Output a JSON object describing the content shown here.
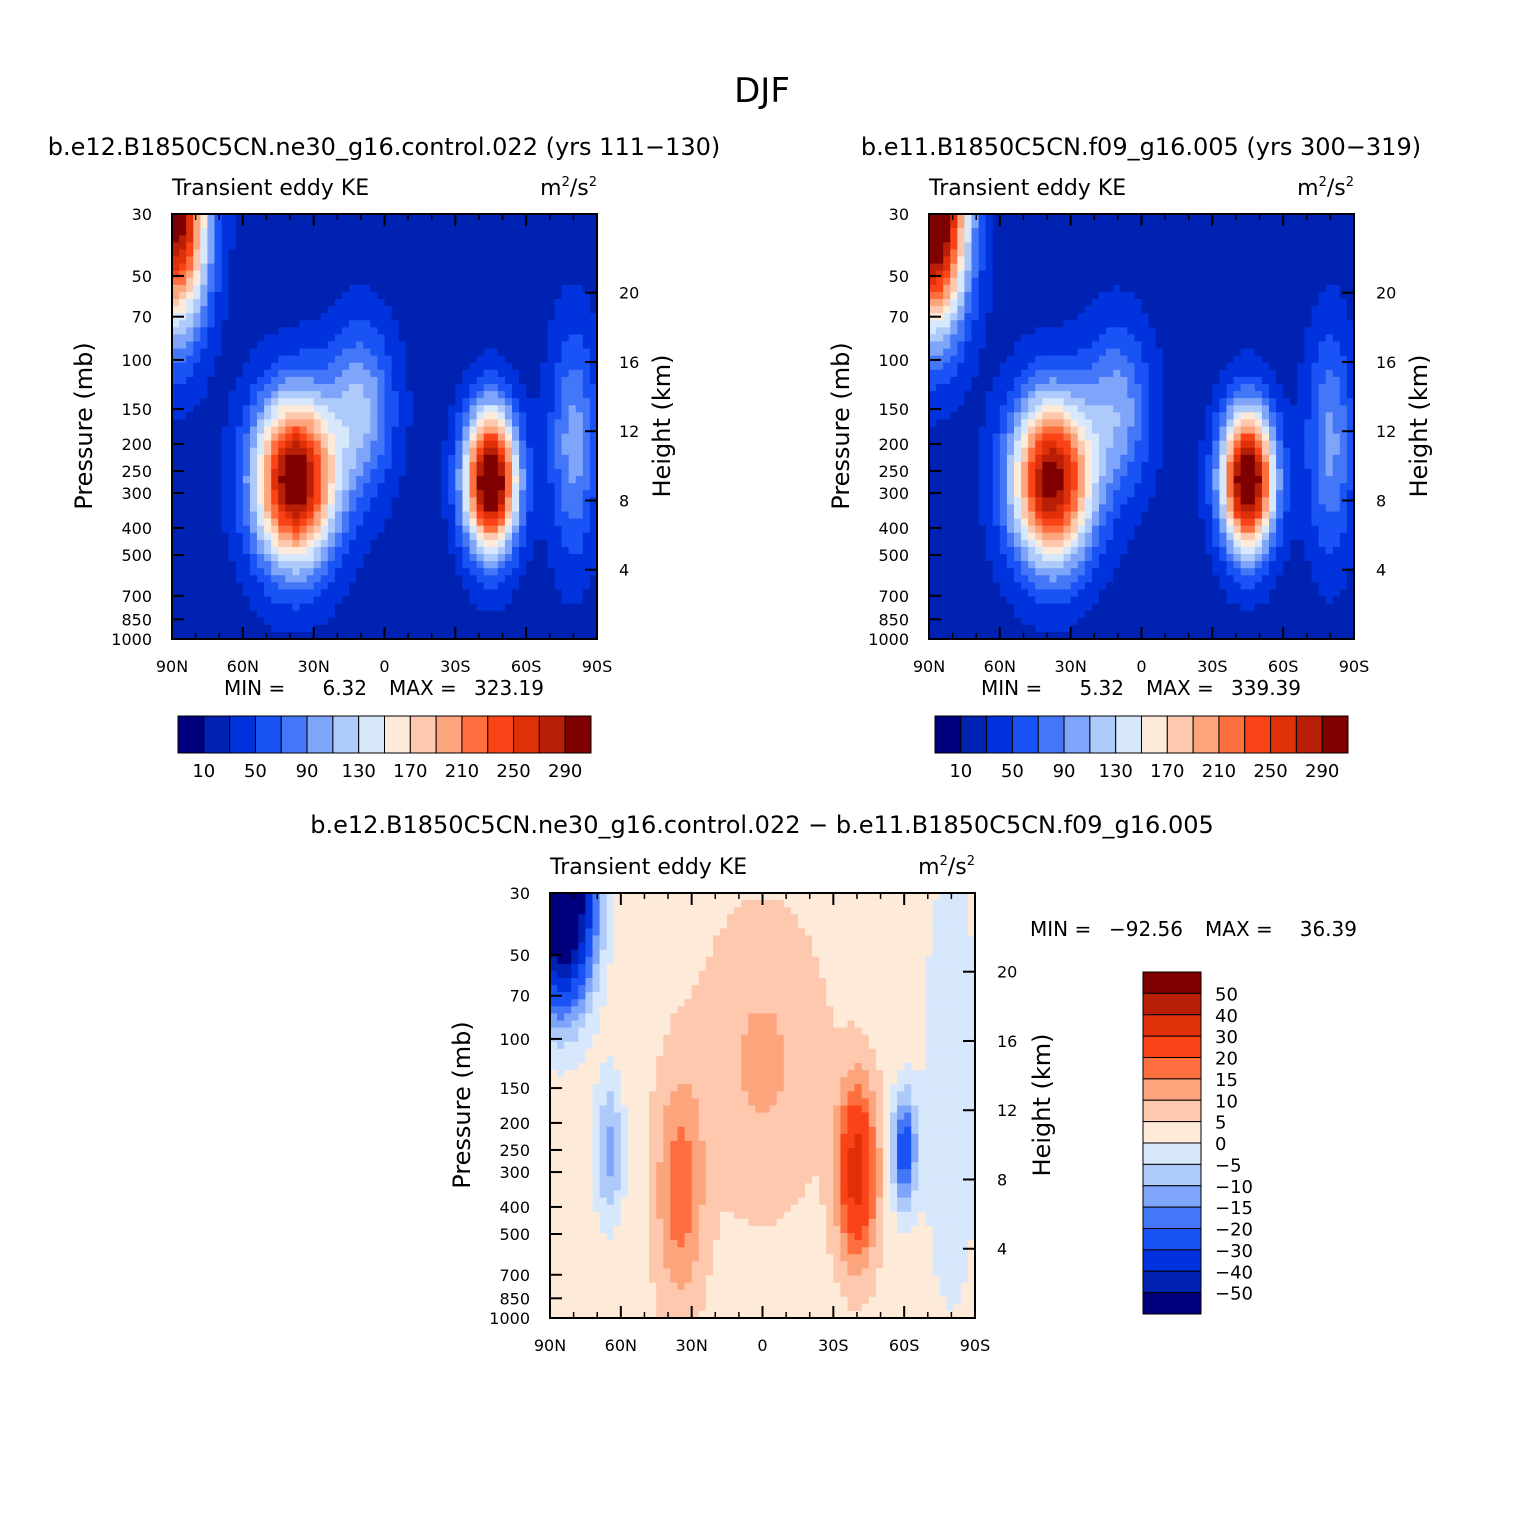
{
  "figure_title": "DJF",
  "chart_data": [
    {
      "type": "heatmap",
      "title": "b.e12.B1850C5CN.ne30_g16.control.022 (yrs 111-130)",
      "title_display": "b.e12.B1850C5CN.ne30_g16.control.022 (yrs 111−130)",
      "left_string": "Transient eddy KE",
      "units_base": "m",
      "units_mid": "/s",
      "units_exp": "2",
      "ylabel": "Pressure (mb)",
      "ylabel_right": "Height (km)",
      "x_ticks": [
        "90N",
        "60N",
        "30N",
        "0",
        "30S",
        "60S",
        "90S"
      ],
      "x_tick_values": [
        90,
        60,
        30,
        0,
        -30,
        -60,
        -90
      ],
      "xlim": [
        90,
        -90
      ],
      "y_ticks": [
        "30",
        "50",
        "70",
        "100",
        "150",
        "200",
        "250",
        "300",
        "400",
        "500",
        "700",
        "850",
        "1000"
      ],
      "y_tick_values": [
        30,
        50,
        70,
        100,
        150,
        200,
        250,
        300,
        400,
        500,
        700,
        850,
        1000
      ],
      "ylim_mb": [
        1000,
        30
      ],
      "height_ticks_km": [
        4,
        8,
        12,
        16,
        20
      ],
      "stats": {
        "min_label": "MIN =",
        "min_value": "6.32",
        "max_label": "MAX =",
        "max_value": "323.19"
      },
      "field": {
        "background": 20,
        "features": [
          {
            "lat": 38,
            "p": 270,
            "amp": 300,
            "wlat": 17,
            "wlogp": 0.3
          },
          {
            "lat": -45,
            "p": 270,
            "amp": 323,
            "wlat": 11,
            "wlogp": 0.25
          },
          {
            "lat": 88,
            "p": 30,
            "amp": 290,
            "wlat": 13,
            "wlogp": 0.4
          },
          {
            "lat": 10,
            "p": 150,
            "amp": 90,
            "wlat": 14,
            "wlogp": 0.3
          },
          {
            "lat": -80,
            "p": 200,
            "amp": 80,
            "wlat": 10,
            "wlogp": 0.4
          }
        ]
      },
      "levels": [
        10,
        30,
        50,
        70,
        90,
        110,
        130,
        150,
        170,
        190,
        210,
        230,
        250,
        270,
        290
      ],
      "colorbar_labels": [
        "10",
        "50",
        "90",
        "130",
        "170",
        "210",
        "250",
        "290"
      ]
    },
    {
      "type": "heatmap",
      "title": "b.e11.B1850C5CN.f09_g16.005 (yrs 300-319)",
      "title_display": "b.e11.B1850C5CN.f09_g16.005 (yrs 300−319)",
      "left_string": "Transient eddy KE",
      "units_base": "m",
      "units_mid": "/s",
      "units_exp": "2",
      "ylabel": "Pressure (mb)",
      "ylabel_right": "Height (km)",
      "x_ticks": [
        "90N",
        "60N",
        "30N",
        "0",
        "30S",
        "60S",
        "90S"
      ],
      "x_tick_values": [
        90,
        60,
        30,
        0,
        -30,
        -60,
        -90
      ],
      "xlim": [
        90,
        -90
      ],
      "y_ticks": [
        "30",
        "50",
        "70",
        "100",
        "150",
        "200",
        "250",
        "300",
        "400",
        "500",
        "700",
        "850",
        "1000"
      ],
      "y_tick_values": [
        30,
        50,
        70,
        100,
        150,
        200,
        250,
        300,
        400,
        500,
        700,
        850,
        1000
      ],
      "ylim_mb": [
        1000,
        30
      ],
      "height_ticks_km": [
        4,
        8,
        12,
        16,
        20
      ],
      "stats": {
        "min_label": "MIN =",
        "min_value": "5.32",
        "max_label": "MAX =",
        "max_value": "339.39"
      },
      "field": {
        "background": 20,
        "features": [
          {
            "lat": 38,
            "p": 270,
            "amp": 285,
            "wlat": 17,
            "wlogp": 0.3
          },
          {
            "lat": -45,
            "p": 270,
            "amp": 320,
            "wlat": 11,
            "wlogp": 0.25
          },
          {
            "lat": 88,
            "p": 30,
            "amp": 339,
            "wlat": 14,
            "wlogp": 0.4
          },
          {
            "lat": 10,
            "p": 150,
            "amp": 80,
            "wlat": 14,
            "wlogp": 0.3
          },
          {
            "lat": -80,
            "p": 200,
            "amp": 75,
            "wlat": 10,
            "wlogp": 0.4
          }
        ]
      },
      "levels": [
        10,
        30,
        50,
        70,
        90,
        110,
        130,
        150,
        170,
        190,
        210,
        230,
        250,
        270,
        290
      ],
      "colorbar_labels": [
        "10",
        "50",
        "90",
        "130",
        "170",
        "210",
        "250",
        "290"
      ]
    },
    {
      "type": "heatmap",
      "title": "b.e12.B1850C5CN.ne30_g16.control.022 - b.e11.B1850C5CN.f09_g16.005",
      "title_display": "b.e12.B1850C5CN.ne30_g16.control.022 − b.e11.B1850C5CN.f09_g16.005",
      "left_string": "Transient eddy KE",
      "units_base": "m",
      "units_mid": "/s",
      "units_exp": "2",
      "ylabel": "Pressure (mb)",
      "ylabel_right": "Height (km)",
      "x_ticks": [
        "90N",
        "60N",
        "30N",
        "0",
        "30S",
        "60S",
        "90S"
      ],
      "x_tick_values": [
        90,
        60,
        30,
        0,
        -30,
        -60,
        -90
      ],
      "xlim": [
        90,
        -90
      ],
      "y_ticks": [
        "30",
        "50",
        "70",
        "100",
        "150",
        "200",
        "250",
        "300",
        "400",
        "500",
        "700",
        "850",
        "1000"
      ],
      "y_tick_values": [
        30,
        50,
        70,
        100,
        150,
        200,
        250,
        300,
        400,
        500,
        700,
        850,
        1000
      ],
      "ylim_mb": [
        1000,
        30
      ],
      "height_ticks_km": [
        4,
        8,
        12,
        16,
        20
      ],
      "stats": {
        "min_label": "MIN =",
        "min_value": "−92.56",
        "max_label": "MAX =",
        "max_value": "36.39"
      },
      "field": {
        "background": 3,
        "features": [
          {
            "lat": 85,
            "p": 30,
            "amp": -92,
            "wlat": 12,
            "wlogp": 0.35
          },
          {
            "lat": 65,
            "p": 250,
            "amp": -15,
            "wlat": 6,
            "wlogp": 0.25
          },
          {
            "lat": 35,
            "p": 350,
            "amp": 15,
            "wlat": 10,
            "wlogp": 0.4
          },
          {
            "lat": -40,
            "p": 300,
            "amp": 32,
            "wlat": 8,
            "wlogp": 0.3
          },
          {
            "lat": -60,
            "p": 250,
            "amp": -28,
            "wlat": 5,
            "wlogp": 0.2
          },
          {
            "lat": 0,
            "p": 120,
            "amp": 8,
            "wlat": 25,
            "wlogp": 0.5
          },
          {
            "lat": -80,
            "p": 150,
            "amp": -8,
            "wlat": 12,
            "wlogp": 0.8
          }
        ]
      },
      "levels": [
        -50,
        -40,
        -30,
        -20,
        -15,
        -10,
        -5,
        0,
        5,
        10,
        15,
        20,
        30,
        40,
        50
      ],
      "colorbar_labels": [
        "50",
        "40",
        "30",
        "20",
        "15",
        "10",
        "5",
        "0",
        "−5",
        "−10",
        "−15",
        "−20",
        "−30",
        "−40",
        "−50"
      ]
    }
  ],
  "colors": {
    "palette": [
      "#00007f",
      "#0022b3",
      "#0033dd",
      "#1a53f5",
      "#4477f7",
      "#7ea5fa",
      "#aecafb",
      "#d7e8fd",
      "#feead9",
      "#fdc8ad",
      "#fca47c",
      "#fd6f3e",
      "#fa4316",
      "#e03009",
      "#b91f06",
      "#7f0000"
    ],
    "axis": "#000000"
  }
}
